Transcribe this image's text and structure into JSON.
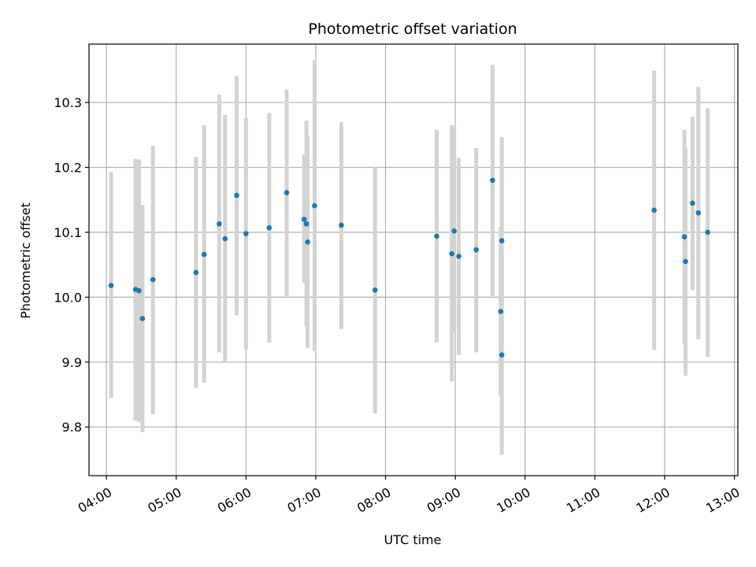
{
  "chart_data": {
    "type": "scatter",
    "title": "Photometric offset variation",
    "xlabel": "UTC time",
    "ylabel": "Photometric offset",
    "x_range_hours": [
      3.75,
      13.05
    ],
    "ylim": [
      9.725,
      10.39
    ],
    "grid": true,
    "x_ticks": [
      "04:00",
      "05:00",
      "06:00",
      "07:00",
      "08:00",
      "09:00",
      "10:00",
      "11:00",
      "12:00",
      "13:00"
    ],
    "y_ticks": [
      "9.8",
      "9.9",
      "10.0",
      "10.1",
      "10.2",
      "10.3"
    ],
    "point_color": "#1f77b4",
    "errorbar_color": "#d3d3d3",
    "points": [
      {
        "time": "04:04",
        "y": 10.018,
        "lo": 9.845,
        "hi": 10.193
      },
      {
        "time": "04:25",
        "y": 10.012,
        "lo": 9.81,
        "hi": 10.213
      },
      {
        "time": "04:28",
        "y": 10.01,
        "lo": 9.808,
        "hi": 10.212
      },
      {
        "time": "04:31",
        "y": 9.967,
        "lo": 9.792,
        "hi": 10.142
      },
      {
        "time": "04:40",
        "y": 10.027,
        "lo": 9.82,
        "hi": 10.233
      },
      {
        "time": "05:17",
        "y": 10.038,
        "lo": 9.86,
        "hi": 10.216
      },
      {
        "time": "05:24",
        "y": 10.066,
        "lo": 9.868,
        "hi": 10.265
      },
      {
        "time": "05:37",
        "y": 10.113,
        "lo": 9.915,
        "hi": 10.312
      },
      {
        "time": "05:42",
        "y": 10.09,
        "lo": 9.9,
        "hi": 10.281
      },
      {
        "time": "05:52",
        "y": 10.157,
        "lo": 9.972,
        "hi": 10.341
      },
      {
        "time": "06:00",
        "y": 10.098,
        "lo": 9.92,
        "hi": 10.276
      },
      {
        "time": "06:20",
        "y": 10.107,
        "lo": 9.93,
        "hi": 10.284
      },
      {
        "time": "06:35",
        "y": 10.161,
        "lo": 10.002,
        "hi": 10.32
      },
      {
        "time": "06:50",
        "y": 10.12,
        "lo": 10.022,
        "hi": 10.22
      },
      {
        "time": "06:52",
        "y": 10.113,
        "lo": 9.955,
        "hi": 10.272
      },
      {
        "time": "06:53",
        "y": 10.085,
        "lo": 9.922,
        "hi": 10.248
      },
      {
        "time": "06:59",
        "y": 10.141,
        "lo": 9.917,
        "hi": 10.365
      },
      {
        "time": "07:22",
        "y": 10.111,
        "lo": 9.951,
        "hi": 10.27
      },
      {
        "time": "07:51",
        "y": 10.011,
        "lo": 9.821,
        "hi": 10.201
      },
      {
        "time": "08:44",
        "y": 10.094,
        "lo": 9.93,
        "hi": 10.258
      },
      {
        "time": "08:57",
        "y": 10.067,
        "lo": 9.87,
        "hi": 10.265
      },
      {
        "time": "08:59",
        "y": 10.102,
        "lo": 9.945,
        "hi": 10.262
      },
      {
        "time": "09:03",
        "y": 10.063,
        "lo": 9.911,
        "hi": 10.215
      },
      {
        "time": "09:18",
        "y": 10.073,
        "lo": 9.915,
        "hi": 10.23
      },
      {
        "time": "09:32",
        "y": 10.18,
        "lo": 10.002,
        "hi": 10.358
      },
      {
        "time": "09:39",
        "y": 9.978,
        "lo": 9.848,
        "hi": 10.108
      },
      {
        "time": "09:40",
        "y": 9.911,
        "lo": 9.757,
        "hi": 10.065
      },
      {
        "time": "09:40",
        "y": 10.087,
        "lo": 9.927,
        "hi": 10.247
      },
      {
        "time": "11:51",
        "y": 10.134,
        "lo": 9.919,
        "hi": 10.349
      },
      {
        "time": "12:17",
        "y": 10.093,
        "lo": 9.927,
        "hi": 10.258
      },
      {
        "time": "12:18",
        "y": 10.055,
        "lo": 9.879,
        "hi": 10.23
      },
      {
        "time": "12:24",
        "y": 10.145,
        "lo": 10.011,
        "hi": 10.278
      },
      {
        "time": "12:29",
        "y": 10.13,
        "lo": 9.935,
        "hi": 10.324
      },
      {
        "time": "12:37",
        "y": 10.1,
        "lo": 9.908,
        "hi": 10.291
      }
    ]
  }
}
